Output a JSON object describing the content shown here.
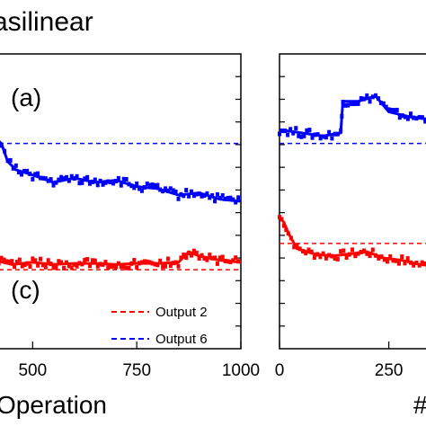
{
  "chart_title": "asilinear",
  "chart_data": [
    {
      "type": "scatter",
      "title": "",
      "xlabel": "Operation",
      "ylabel": "",
      "xlim": [
        400,
        1000
      ],
      "x_ticks": [
        500,
        750,
        1000
      ],
      "panel_labels": [
        "(a)",
        "(c)"
      ],
      "legend": {
        "position": "bottom-right",
        "entries": [
          "Output 2",
          "Output 6"
        ]
      },
      "series": [
        {
          "name": "Output 2",
          "color": "#ff0000",
          "reference_level": -0.05,
          "points": [
            [
              400,
              0.05
            ],
            [
              450,
              0.0
            ],
            [
              500,
              0.02
            ],
            [
              550,
              0.0
            ],
            [
              600,
              0.01
            ],
            [
              650,
              0.01
            ],
            [
              700,
              0.0
            ],
            [
              750,
              0.01
            ],
            [
              800,
              0.01
            ],
            [
              850,
              0.02
            ],
            [
              875,
              0.12
            ],
            [
              900,
              0.08
            ],
            [
              950,
              0.04
            ],
            [
              1000,
              0.02
            ]
          ]
        },
        {
          "name": "Output 6",
          "color": "#0000ff",
          "reference_level": 1.15,
          "points": [
            [
              400,
              1.05
            ],
            [
              410,
              1.2
            ],
            [
              425,
              1.15
            ],
            [
              440,
              0.98
            ],
            [
              460,
              0.9
            ],
            [
              500,
              0.85
            ],
            [
              550,
              0.78
            ],
            [
              600,
              0.82
            ],
            [
              650,
              0.78
            ],
            [
              700,
              0.8
            ],
            [
              750,
              0.74
            ],
            [
              800,
              0.72
            ],
            [
              850,
              0.66
            ],
            [
              900,
              0.68
            ],
            [
              950,
              0.62
            ],
            [
              1000,
              0.6
            ]
          ]
        }
      ]
    },
    {
      "type": "scatter",
      "title": "",
      "xlabel": "#",
      "ylabel": "",
      "xlim": [
        0,
        370
      ],
      "x_ticks": [
        0,
        250
      ],
      "series": [
        {
          "name": "",
          "color": "#ff0000",
          "reference_level": 0.2,
          "points": [
            [
              0,
              0.45
            ],
            [
              10,
              0.4
            ],
            [
              20,
              0.3
            ],
            [
              40,
              0.15
            ],
            [
              80,
              0.1
            ],
            [
              120,
              0.08
            ],
            [
              160,
              0.1
            ],
            [
              200,
              0.12
            ],
            [
              240,
              0.06
            ],
            [
              280,
              0.04
            ],
            [
              320,
              0.0
            ],
            [
              370,
              -0.02
            ]
          ]
        },
        {
          "name": "",
          "color": "#0000ff",
          "reference_level": 1.15,
          "points": [
            [
              0,
              1.28
            ],
            [
              50,
              1.25
            ],
            [
              100,
              1.22
            ],
            [
              140,
              1.25
            ],
            [
              145,
              1.55
            ],
            [
              180,
              1.55
            ],
            [
              220,
              1.6
            ],
            [
              250,
              1.45
            ],
            [
              300,
              1.4
            ],
            [
              340,
              1.38
            ],
            [
              370,
              1.3
            ]
          ]
        }
      ]
    }
  ]
}
